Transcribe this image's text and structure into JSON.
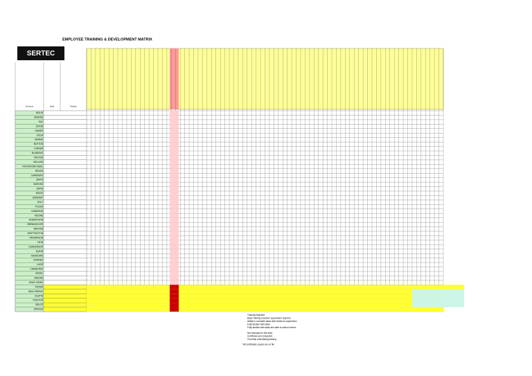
{
  "header": {
    "title": "EMPLOYEE TRAINING & DEVELOPMENT MATRIX",
    "logo": "SERTEC"
  },
  "table": {
    "columns": [
      "Surname",
      "State",
      "Position"
    ],
    "rows": [
      "MOLIR",
      "GRAVES",
      "RAY",
      "DIXON",
      "HAWES",
      "KOLM",
      "HEMME",
      "BUTTON",
      "TURNER",
      "BLANDING",
      "PACKER",
      "MULLINS",
      "FROOKFORD-NEAL",
      "BRASH",
      "CARMINATI",
      "SMITH",
      "BURGES",
      "DAVIS",
      "RIDGE",
      "UNDERAY",
      "HOLT",
      "TOLIEN",
      "HAMMOND",
      "MOORE",
      "ROBERTSON",
      "BRENNOCKER",
      "WALKER",
      "WHITTINGTON",
      "PIROMPSON",
      "REID",
      "GUNDERSON",
      "QUINN",
      "MEADOWS",
      "DONNES",
      "LAVIS",
      "CHENEVIER",
      "PERRY",
      "SIMONS",
      "KEUR JONES",
      "STROM",
      "MALLORDING",
      "AUSTIN",
      "KINGTON",
      "BELCE",
      "SPENCE"
    ]
  },
  "legend": [
    "Training Required",
    "Basic training received: supervision required",
    "Ability to complete tasks with minimum supervision",
    "Fully familiar with tasks",
    "Fully familiar with tasks and able to instruct others",
    "Not employed in this area",
    "Certificate and competent",
    "Currently undertaking training",
    "*All certificates copies are on file"
  ]
}
